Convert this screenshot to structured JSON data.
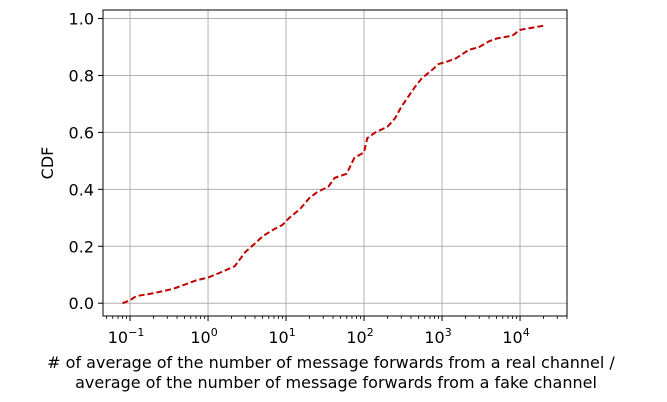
{
  "chart_data": {
    "type": "line",
    "title": "",
    "xlabel_lines": [
      "# of average of the number of message forwards from a real channel /",
      "average of the number of message forwards from a fake channel"
    ],
    "ylabel": "CDF",
    "xscale": "log",
    "xlim": [
      0.045,
      40000
    ],
    "ylim": [
      -0.045,
      1.03
    ],
    "grid": true,
    "legend": "none",
    "x_ticks": [
      {
        "value": 0.1,
        "label": "10",
        "exp": "−1"
      },
      {
        "value": 1,
        "label": "10",
        "exp": "0"
      },
      {
        "value": 10,
        "label": "10",
        "exp": "1"
      },
      {
        "value": 100,
        "label": "10",
        "exp": "2"
      },
      {
        "value": 1000,
        "label": "10",
        "exp": "3"
      },
      {
        "value": 10000,
        "label": "10",
        "exp": "4"
      }
    ],
    "y_ticks": [
      {
        "value": 0.0,
        "label": "0.0"
      },
      {
        "value": 0.2,
        "label": "0.2"
      },
      {
        "value": 0.4,
        "label": "0.4"
      },
      {
        "value": 0.6,
        "label": "0.6"
      },
      {
        "value": 0.8,
        "label": "0.8"
      },
      {
        "value": 1.0,
        "label": "1.0"
      }
    ],
    "series": [
      {
        "color": "#c00000",
        "style": "dashed",
        "points": [
          [
            0.08,
            0.0
          ],
          [
            0.1,
            0.01
          ],
          [
            0.12,
            0.025
          ],
          [
            0.2,
            0.035
          ],
          [
            0.35,
            0.05
          ],
          [
            0.5,
            0.065
          ],
          [
            0.7,
            0.08
          ],
          [
            1.0,
            0.09
          ],
          [
            1.5,
            0.11
          ],
          [
            2.2,
            0.13
          ],
          [
            3.0,
            0.18
          ],
          [
            4.0,
            0.21
          ],
          [
            5.0,
            0.235
          ],
          [
            7.0,
            0.26
          ],
          [
            9.0,
            0.275
          ],
          [
            11.0,
            0.3
          ],
          [
            15.0,
            0.33
          ],
          [
            20.0,
            0.37
          ],
          [
            25.0,
            0.39
          ],
          [
            35.0,
            0.41
          ],
          [
            42.0,
            0.44
          ],
          [
            60.0,
            0.455
          ],
          [
            75.0,
            0.51
          ],
          [
            100.0,
            0.53
          ],
          [
            110.0,
            0.58
          ],
          [
            140.0,
            0.6
          ],
          [
            200.0,
            0.62
          ],
          [
            250.0,
            0.65
          ],
          [
            300.0,
            0.69
          ],
          [
            450.0,
            0.76
          ],
          [
            550.0,
            0.79
          ],
          [
            750.0,
            0.82
          ],
          [
            900.0,
            0.84
          ],
          [
            1200.0,
            0.85
          ],
          [
            1500.0,
            0.86
          ],
          [
            2200.0,
            0.89
          ],
          [
            3000.0,
            0.9
          ],
          [
            4000.0,
            0.92
          ],
          [
            5000.0,
            0.93
          ],
          [
            8000.0,
            0.94
          ],
          [
            10000.0,
            0.96
          ],
          [
            20000.0,
            0.975
          ]
        ]
      }
    ]
  }
}
